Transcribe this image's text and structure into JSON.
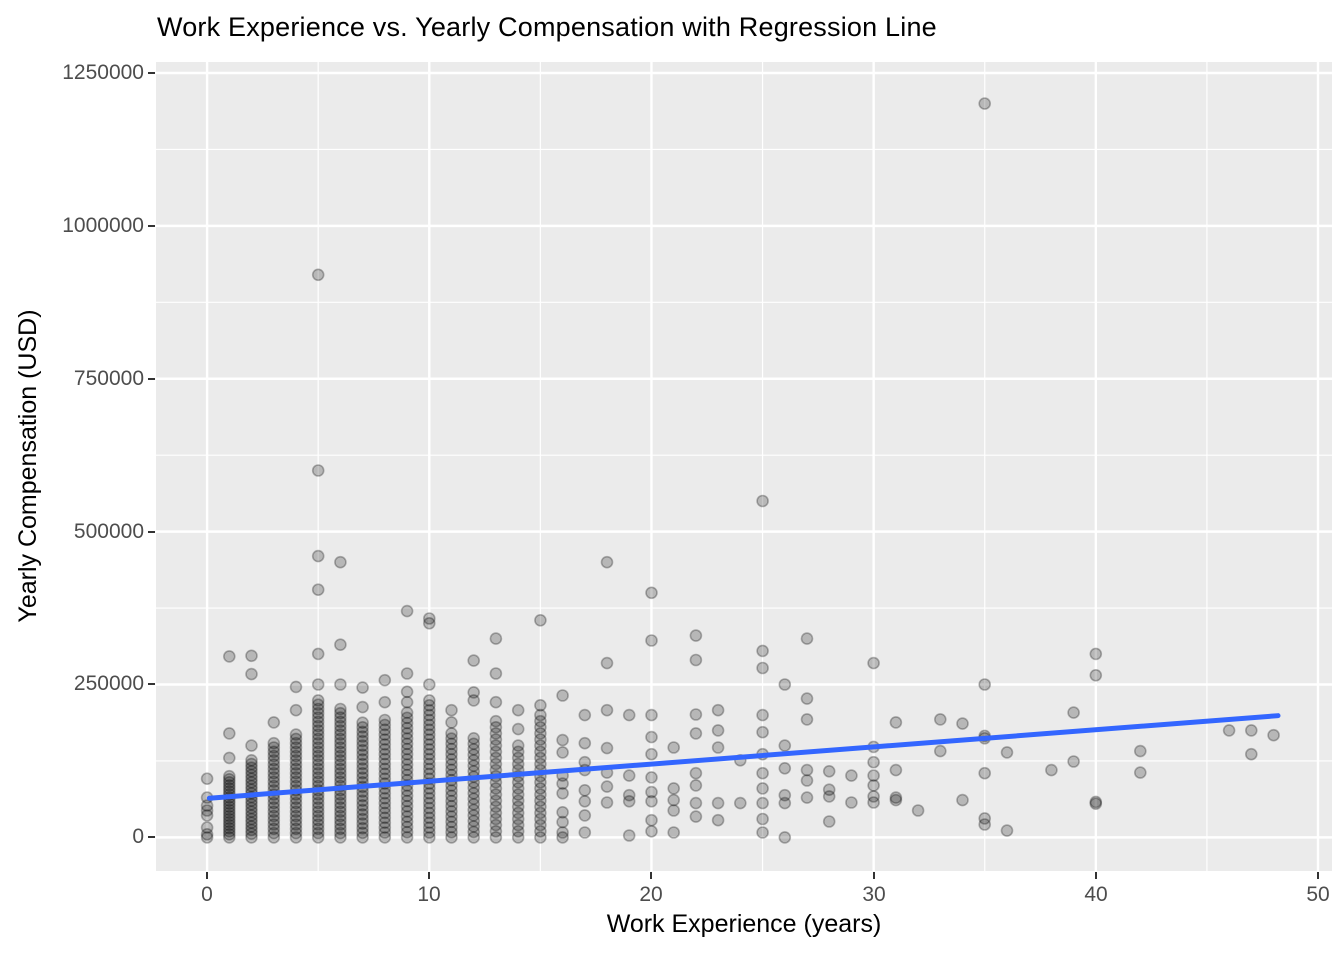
{
  "chart_data": {
    "type": "scatter",
    "title": "Work Experience vs. Yearly Compensation with Regression Line",
    "xlabel": "Work Experience (years)",
    "ylabel": "Yearly Compensation (USD)",
    "grid": true,
    "legend_position": "none",
    "x_axis": {
      "ticks": [
        0,
        10,
        20,
        30,
        40,
        50
      ],
      "minor_ticks": [
        5,
        15,
        25,
        35,
        45
      ],
      "domain": [
        -2.3,
        50.63
      ]
    },
    "y_axis": {
      "ticks": [
        0,
        250000,
        500000,
        750000,
        1000000,
        1250000
      ],
      "minor_ticks": [
        125000,
        375000,
        625000,
        875000,
        1125000
      ],
      "domain": [
        -55000,
        1268000
      ]
    },
    "style": {
      "panel_bg": "#EBEBEB",
      "grid_color": "#FFFFFF",
      "point_color": "#000000",
      "point_fill_alpha": 0.22,
      "point_stroke_alpha": 0.28,
      "tick_text_color": "#4D4D4D",
      "title_color": "#000000",
      "regression_color": "#3366FF"
    },
    "regression_line": {
      "x": [
        0.1,
        48.2
      ],
      "y": [
        64000,
        199000
      ]
    },
    "points_by_experience": [
      {
        "x": 0,
        "values": [
          0,
          5000,
          16000,
          36000,
          44000,
          52000,
          65000,
          96000
        ]
      },
      {
        "x": 1,
        "values": [
          0,
          5000,
          10000,
          15000,
          20000,
          25000,
          30000,
          35000,
          40000,
          45000,
          50000,
          55000,
          60000,
          65000,
          70000,
          75000,
          80000,
          85000,
          90000,
          95000,
          100000,
          130000,
          170000,
          296000
        ]
      },
      {
        "x": 2,
        "values": [
          0,
          6000,
          12000,
          18000,
          24000,
          30000,
          36000,
          42000,
          48000,
          54000,
          60000,
          66000,
          72000,
          78000,
          84000,
          90000,
          96000,
          102000,
          108000,
          114000,
          120000,
          126000,
          150000,
          267000,
          297000
        ]
      },
      {
        "x": 3,
        "values": [
          0,
          7000,
          14000,
          21000,
          28000,
          35000,
          42000,
          49000,
          56000,
          63000,
          70000,
          77000,
          84000,
          91000,
          98000,
          105000,
          112000,
          119000,
          126000,
          133000,
          140000,
          147000,
          154000,
          188000
        ]
      },
      {
        "x": 4,
        "values": [
          0,
          7000,
          14000,
          21000,
          28000,
          35000,
          42000,
          49000,
          56000,
          63000,
          70000,
          77000,
          84000,
          91000,
          98000,
          105000,
          112000,
          119000,
          126000,
          133000,
          140000,
          147000,
          154000,
          161000,
          168000,
          208000,
          246000
        ]
      },
      {
        "x": 5,
        "values": [
          0,
          7000,
          14000,
          21000,
          28000,
          35000,
          42000,
          49000,
          56000,
          63000,
          70000,
          77000,
          84000,
          91000,
          98000,
          105000,
          112000,
          119000,
          126000,
          133000,
          140000,
          147000,
          154000,
          161000,
          168000,
          175000,
          182000,
          189000,
          196000,
          203000,
          210000,
          217000,
          224000,
          250000,
          300000,
          405000,
          460000,
          600000,
          920000
        ]
      },
      {
        "x": 6,
        "values": [
          0,
          7000,
          14000,
          21000,
          28000,
          35000,
          42000,
          49000,
          56000,
          63000,
          70000,
          77000,
          84000,
          91000,
          98000,
          105000,
          112000,
          119000,
          126000,
          133000,
          140000,
          147000,
          154000,
          161000,
          168000,
          175000,
          182000,
          189000,
          196000,
          203000,
          210000,
          250000,
          315000,
          450000
        ]
      },
      {
        "x": 7,
        "values": [
          0,
          7500,
          15000,
          22500,
          30000,
          37500,
          45000,
          52500,
          60000,
          67500,
          75000,
          82500,
          90000,
          97500,
          105000,
          112500,
          120000,
          127500,
          135000,
          142500,
          150000,
          157500,
          165000,
          172500,
          180000,
          187500,
          213000,
          245000
        ]
      },
      {
        "x": 8,
        "values": [
          0,
          8000,
          16000,
          24000,
          32000,
          40000,
          48000,
          56000,
          64000,
          72000,
          80000,
          88000,
          96000,
          104000,
          112000,
          120000,
          128000,
          136000,
          144000,
          152000,
          160000,
          168000,
          176000,
          184000,
          192000,
          221000,
          257000
        ]
      },
      {
        "x": 9,
        "values": [
          0,
          8500,
          17000,
          25500,
          34000,
          42500,
          51000,
          59500,
          68000,
          76500,
          85000,
          93500,
          102000,
          110500,
          119000,
          127500,
          136000,
          144500,
          153000,
          161500,
          170000,
          178500,
          187000,
          195500,
          204000,
          221000,
          238000,
          268000,
          370000
        ]
      },
      {
        "x": 10,
        "values": [
          0,
          8000,
          16000,
          24000,
          32000,
          40000,
          48000,
          56000,
          64000,
          72000,
          80000,
          88000,
          96000,
          104000,
          112000,
          120000,
          128000,
          136000,
          144000,
          152000,
          160000,
          168000,
          176000,
          184000,
          192000,
          200000,
          208000,
          216000,
          224000,
          250000,
          350000,
          358000
        ]
      },
      {
        "x": 11,
        "values": [
          0,
          8500,
          17000,
          25500,
          34000,
          42500,
          51000,
          59500,
          68000,
          76500,
          85000,
          93500,
          102000,
          110500,
          119000,
          127500,
          136000,
          144500,
          153000,
          161500,
          170000,
          188000,
          208000
        ]
      },
      {
        "x": 12,
        "values": [
          0,
          9000,
          18000,
          27000,
          36000,
          45000,
          54000,
          63000,
          72000,
          81000,
          90000,
          99000,
          108000,
          117000,
          126000,
          135000,
          144000,
          153000,
          162000,
          224000,
          237000,
          289000
        ]
      },
      {
        "x": 13,
        "values": [
          0,
          10000,
          20000,
          30000,
          40000,
          50000,
          60000,
          70000,
          80000,
          90000,
          100000,
          110000,
          120000,
          130000,
          140000,
          150000,
          160000,
          170000,
          180000,
          190000,
          221000,
          268000,
          325000
        ]
      },
      {
        "x": 14,
        "values": [
          0,
          10000,
          20000,
          30000,
          40000,
          50000,
          60000,
          70000,
          80000,
          90000,
          100000,
          110000,
          120000,
          130000,
          140000,
          150000,
          177000,
          208000
        ]
      },
      {
        "x": 15,
        "values": [
          0,
          10000,
          20000,
          30000,
          40000,
          50000,
          60000,
          70000,
          80000,
          90000,
          100000,
          110000,
          120000,
          130000,
          140000,
          150000,
          160000,
          170000,
          180000,
          190000,
          200000,
          216000,
          355000
        ]
      },
      {
        "x": 16,
        "values": [
          0,
          8000,
          25000,
          41000,
          72000,
          88000,
          101000,
          139000,
          159000,
          232000
        ]
      },
      {
        "x": 17,
        "values": [
          8000,
          36000,
          59000,
          77000,
          110000,
          123000,
          154000,
          200000
        ]
      },
      {
        "x": 18,
        "values": [
          57000,
          83000,
          106000,
          146000,
          208000,
          285000,
          450000
        ]
      },
      {
        "x": 19,
        "values": [
          3000,
          59000,
          69000,
          101000,
          200000
        ]
      },
      {
        "x": 20,
        "values": [
          10000,
          28000,
          59000,
          74000,
          98000,
          136000,
          164000,
          200000,
          322000,
          400000
        ]
      },
      {
        "x": 21,
        "values": [
          8000,
          44000,
          61000,
          80000,
          147000
        ]
      },
      {
        "x": 22,
        "values": [
          34000,
          56000,
          85000,
          105000,
          170000,
          201000,
          290000,
          330000
        ]
      },
      {
        "x": 23,
        "values": [
          28000,
          56000,
          147000,
          175000,
          208000
        ]
      },
      {
        "x": 24,
        "values": [
          56000,
          126000
        ]
      },
      {
        "x": 25,
        "values": [
          8000,
          30000,
          56000,
          80000,
          105000,
          136000,
          172000,
          200000,
          277000,
          305000,
          550000
        ]
      },
      {
        "x": 26,
        "values": [
          0,
          56000,
          69000,
          113000,
          150000,
          250000
        ]
      },
      {
        "x": 27,
        "values": [
          65000,
          93000,
          110000,
          193000,
          227000,
          325000
        ]
      },
      {
        "x": 28,
        "values": [
          26000,
          67000,
          78000,
          108000
        ]
      },
      {
        "x": 29,
        "values": [
          57000,
          101000
        ]
      },
      {
        "x": 30,
        "values": [
          57000,
          67000,
          85000,
          101000,
          123000,
          148000,
          285000
        ]
      },
      {
        "x": 31,
        "values": [
          61000,
          65000,
          110000,
          188000
        ]
      },
      {
        "x": 32,
        "values": [
          44000
        ]
      },
      {
        "x": 33,
        "values": [
          141000,
          193000
        ]
      },
      {
        "x": 34,
        "values": [
          61000,
          186000
        ]
      },
      {
        "x": 35,
        "values": [
          21000,
          31000,
          105000,
          162000,
          166000,
          250000,
          1200000
        ]
      },
      {
        "x": 36,
        "values": [
          11000,
          139000
        ]
      },
      {
        "x": 38,
        "values": [
          110000
        ]
      },
      {
        "x": 39,
        "values": [
          124000,
          204000
        ]
      },
      {
        "x": 40,
        "values": [
          55000,
          58000,
          265000,
          300000
        ]
      },
      {
        "x": 42,
        "values": [
          106000,
          141000
        ]
      },
      {
        "x": 46,
        "values": [
          175000
        ]
      },
      {
        "x": 47,
        "values": [
          136000,
          175000
        ]
      },
      {
        "x": 48,
        "values": [
          167000
        ]
      }
    ]
  }
}
